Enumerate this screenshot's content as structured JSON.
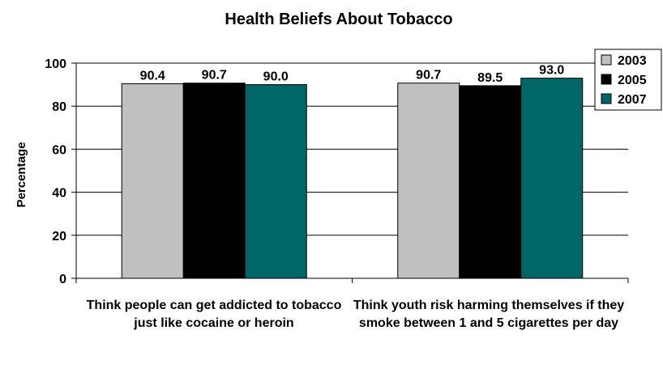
{
  "chart_data": {
    "type": "bar",
    "title": "Health Beliefs About Tobacco",
    "xlabel": "",
    "ylabel": "Percentage",
    "ylim": [
      0,
      100
    ],
    "yticks": [
      0,
      20,
      40,
      60,
      80,
      100
    ],
    "grid": "horizontal",
    "legend_position": "top-right",
    "categories": [
      "Think people can get addicted to tobacco just like cocaine or heroin",
      "Think youth risk harming themselves if they smoke between 1 and 5 cigarettes per day"
    ],
    "series": [
      {
        "name": "2003",
        "color": "#c0c0c0",
        "values": [
          90.4,
          90.7
        ],
        "labels": [
          "90.4",
          "90.7"
        ]
      },
      {
        "name": "2005",
        "color": "#000000",
        "values": [
          90.7,
          89.5
        ],
        "labels": [
          "90.7",
          "89.5"
        ]
      },
      {
        "name": "2007",
        "color": "#006666",
        "values": [
          90.0,
          93.0
        ],
        "labels": [
          "90.0",
          "93.0"
        ]
      }
    ]
  }
}
